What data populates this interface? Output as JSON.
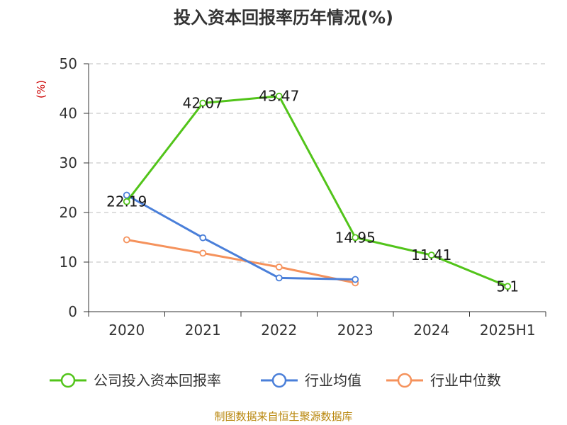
{
  "chart_data": {
    "type": "line",
    "title": "投入资本回报率历年情况(%)",
    "y_unit": "(%)",
    "categories": [
      "2020",
      "2021",
      "2022",
      "2023",
      "2024",
      "2025H1"
    ],
    "y_ticks": [
      "0",
      "10",
      "20",
      "30",
      "40",
      "50"
    ],
    "ylim": [
      0,
      50
    ],
    "grid": "horizontal-dashed",
    "legend_position": "bottom",
    "series": [
      {
        "name": "公司投入资本回报率",
        "color": "#52c41a",
        "values": [
          22.19,
          42.07,
          43.47,
          14.95,
          11.41,
          5.1
        ],
        "labels": [
          "22.19",
          "42.07",
          "43.47",
          "14.95",
          "11.41",
          "5.1"
        ]
      },
      {
        "name": "行业均值",
        "color": "#4a7fd9",
        "values": [
          23.5,
          14.9,
          6.8,
          6.5,
          null,
          null
        ]
      },
      {
        "name": "行业中位数",
        "color": "#f5925c",
        "values": [
          14.5,
          11.8,
          9.0,
          5.8,
          null,
          null
        ]
      }
    ],
    "source": "制图数据来自恒生聚源数据库"
  }
}
